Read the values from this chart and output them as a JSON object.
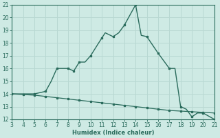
{
  "xlabel": "Humidex (Indice chaleur)",
  "background_color": "#ceeae4",
  "grid_color": "#b8d8d2",
  "line_color": "#2a6b5c",
  "xlim": [
    3,
    21
  ],
  "ylim": [
    12,
    21
  ],
  "xticks": [
    3,
    4,
    5,
    6,
    7,
    8,
    9,
    10,
    11,
    12,
    13,
    14,
    15,
    16,
    17,
    18,
    19,
    20,
    21
  ],
  "yticks": [
    12,
    13,
    14,
    15,
    16,
    17,
    18,
    19,
    20,
    21
  ],
  "x_upper": [
    3,
    4,
    5,
    6,
    6.5,
    7,
    8,
    8.5,
    9,
    9.5,
    10,
    11,
    11.3,
    12,
    12.5,
    13,
    14,
    14.5,
    15,
    16,
    17,
    17.5,
    18,
    18.5,
    19,
    19.5,
    20,
    21
  ],
  "y_upper": [
    14,
    14,
    14,
    14.2,
    15,
    16,
    16,
    15.8,
    16.5,
    16.5,
    17,
    18.4,
    18.8,
    18.5,
    18.8,
    19.4,
    21,
    18.6,
    18.5,
    17.2,
    16.0,
    16,
    13.0,
    12.8,
    12.2,
    12.5,
    12.5,
    12.0
  ],
  "markers_upper_x": [
    3,
    5,
    6,
    7,
    8,
    8.5,
    9,
    10,
    11,
    12,
    13,
    14,
    15,
    16,
    17,
    18,
    19,
    20,
    21
  ],
  "markers_upper_y": [
    14,
    14,
    14.2,
    16,
    16,
    15.8,
    16.5,
    17,
    18.4,
    18.5,
    19.4,
    21,
    18.5,
    17.2,
    16.0,
    13.0,
    12.2,
    12.5,
    12.0
  ],
  "x_lower": [
    3,
    4,
    5,
    6,
    7,
    8,
    9,
    10,
    11,
    12,
    13,
    14,
    15,
    16,
    17,
    18,
    19,
    20,
    21
  ],
  "y_lower": [
    14.0,
    13.95,
    13.9,
    13.8,
    13.7,
    13.6,
    13.5,
    13.4,
    13.3,
    13.2,
    13.1,
    13.0,
    12.9,
    12.8,
    12.7,
    12.65,
    12.6,
    12.55,
    12.5
  ],
  "markers_lower_x": [
    3,
    4,
    5,
    6,
    7,
    8,
    9,
    10,
    11,
    12,
    13,
    14,
    15,
    16,
    17,
    18,
    19,
    20,
    21
  ],
  "markers_lower_y": [
    14.0,
    13.95,
    13.9,
    13.8,
    13.7,
    13.6,
    13.5,
    13.4,
    13.3,
    13.2,
    13.1,
    13.0,
    12.9,
    12.8,
    12.7,
    12.65,
    12.6,
    12.55,
    12.5
  ]
}
